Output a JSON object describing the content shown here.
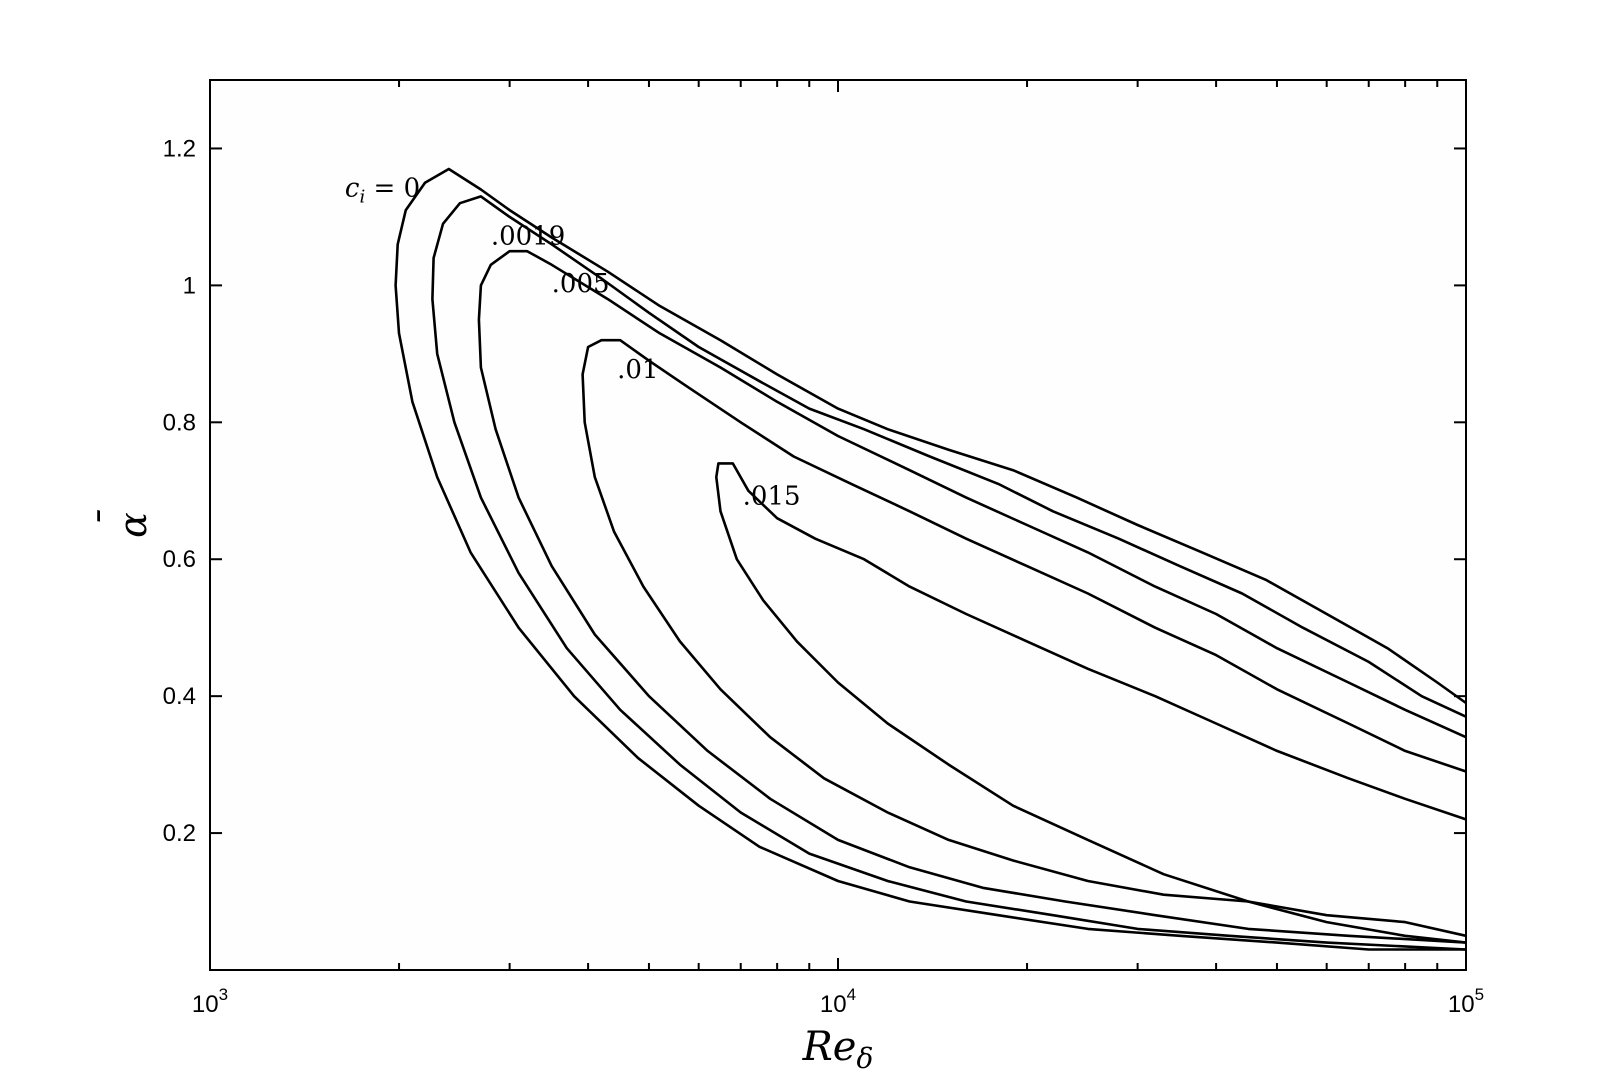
{
  "chart_data": {
    "type": "line",
    "title": "",
    "xlabel": "Re",
    "xlabel_sub": "δ",
    "ylabel": "α",
    "ylabel_bar": "ˉ",
    "xscale": "log",
    "xlim": [
      1000,
      100000
    ],
    "ylim": [
      0,
      1.3
    ],
    "x_ticks": [
      {
        "base": "10",
        "exp": "3",
        "value": 1000
      },
      {
        "base": "10",
        "exp": "4",
        "value": 10000
      },
      {
        "base": "10",
        "exp": "5",
        "value": 100000
      }
    ],
    "y_ticks": [
      {
        "label": "0.2",
        "value": 0.2
      },
      {
        "label": "0.4",
        "value": 0.4
      },
      {
        "label": "0.6",
        "value": 0.6
      },
      {
        "label": "0.8",
        "value": 0.8
      },
      {
        "label": "1",
        "value": 1.0
      },
      {
        "label": "1.2",
        "value": 1.2
      }
    ],
    "grid": false,
    "legend": "none",
    "line_color": "#000000",
    "series": [
      {
        "level": "0",
        "label_prefix": "c",
        "label_sub": "i",
        "label_suffix": " = 0",
        "label_at": [
          1640,
          1.13
        ],
        "x": [
          100000,
          90000,
          75000,
          60000,
          48000,
          38000,
          30000,
          24000,
          19000,
          15000,
          12000,
          10000,
          8000,
          6500,
          5200,
          4300,
          3500,
          3000,
          2700,
          2400,
          2200,
          2050,
          1990,
          1975,
          2000,
          2100,
          2300,
          2600,
          3100,
          3800,
          4800,
          6000,
          7500,
          10000,
          13000,
          18000,
          25000,
          35000,
          50000,
          70000,
          100000
        ],
        "y": [
          0.39,
          0.42,
          0.47,
          0.52,
          0.57,
          0.61,
          0.65,
          0.69,
          0.73,
          0.76,
          0.79,
          0.82,
          0.87,
          0.92,
          0.97,
          1.02,
          1.07,
          1.11,
          1.14,
          1.17,
          1.15,
          1.11,
          1.06,
          1.0,
          0.93,
          0.83,
          0.72,
          0.61,
          0.5,
          0.4,
          0.31,
          0.24,
          0.18,
          0.13,
          0.1,
          0.08,
          0.06,
          0.05,
          0.04,
          0.03,
          0.03
        ]
      },
      {
        "level": ".0019",
        "label": ".0019",
        "label_at": [
          2800,
          1.06
        ],
        "x": [
          100000,
          85000,
          70000,
          55000,
          44000,
          35000,
          28000,
          22000,
          18000,
          14000,
          11000,
          9000,
          7500,
          6000,
          5000,
          4200,
          3500,
          3000,
          2700,
          2500,
          2350,
          2270,
          2260,
          2300,
          2450,
          2700,
          3100,
          3700,
          4500,
          5600,
          7000,
          9000,
          12000,
          16000,
          22000,
          30000,
          42000,
          60000,
          100000
        ],
        "y": [
          0.37,
          0.4,
          0.45,
          0.5,
          0.55,
          0.59,
          0.63,
          0.67,
          0.71,
          0.75,
          0.79,
          0.82,
          0.86,
          0.91,
          0.96,
          1.01,
          1.06,
          1.1,
          1.13,
          1.12,
          1.09,
          1.04,
          0.98,
          0.9,
          0.8,
          0.69,
          0.58,
          0.47,
          0.38,
          0.3,
          0.23,
          0.17,
          0.13,
          0.1,
          0.08,
          0.06,
          0.05,
          0.04,
          0.03
        ]
      },
      {
        "level": ".005",
        "label": ".005",
        "label_at": [
          3500,
          0.99
        ],
        "x": [
          100000,
          80000,
          65000,
          50000,
          40000,
          32000,
          25000,
          20000,
          16000,
          13000,
          10000,
          8000,
          6500,
          5200,
          4300,
          3500,
          3200,
          3000,
          2800,
          2700,
          2680,
          2700,
          2850,
          3100,
          3500,
          4100,
          5000,
          6200,
          7800,
          10000,
          13000,
          17000,
          23000,
          32000,
          45000,
          65000,
          100000
        ],
        "y": [
          0.34,
          0.38,
          0.42,
          0.47,
          0.52,
          0.56,
          0.61,
          0.65,
          0.69,
          0.73,
          0.78,
          0.83,
          0.88,
          0.93,
          0.98,
          1.03,
          1.05,
          1.05,
          1.03,
          1.0,
          0.95,
          0.88,
          0.79,
          0.69,
          0.59,
          0.49,
          0.4,
          0.32,
          0.25,
          0.19,
          0.15,
          0.12,
          0.1,
          0.08,
          0.06,
          0.05,
          0.04
        ]
      },
      {
        "level": ".01",
        "label": ".01",
        "label_at": [
          4450,
          0.865
        ],
        "x": [
          100000,
          80000,
          65000,
          50000,
          40000,
          32000,
          25000,
          20000,
          16000,
          13000,
          10500,
          8500,
          7000,
          5800,
          5000,
          4500,
          4200,
          4000,
          3920,
          3950,
          4100,
          4400,
          4900,
          5600,
          6500,
          7800,
          9500,
          12000,
          15000,
          19000,
          25000,
          33000,
          45000,
          60000,
          80000,
          100000
        ],
        "y": [
          0.29,
          0.32,
          0.36,
          0.41,
          0.46,
          0.5,
          0.55,
          0.59,
          0.63,
          0.67,
          0.71,
          0.75,
          0.8,
          0.85,
          0.89,
          0.92,
          0.92,
          0.91,
          0.87,
          0.8,
          0.72,
          0.64,
          0.56,
          0.48,
          0.41,
          0.34,
          0.28,
          0.23,
          0.19,
          0.16,
          0.13,
          0.11,
          0.1,
          0.08,
          0.07,
          0.05
        ]
      },
      {
        "level": ".015",
        "label": ".015",
        "label_at": [
          7050,
          0.68
        ],
        "x": [
          100000,
          80000,
          65000,
          50000,
          40000,
          32000,
          25000,
          20000,
          16000,
          13000,
          11000,
          9200,
          8000,
          7200,
          6800,
          6450,
          6400,
          6500,
          6900,
          7600,
          8600,
          10000,
          12000,
          15000,
          19000,
          25000,
          33000,
          45000,
          60000,
          80000,
          100000
        ],
        "y": [
          0.22,
          0.25,
          0.28,
          0.32,
          0.36,
          0.4,
          0.44,
          0.48,
          0.52,
          0.56,
          0.6,
          0.63,
          0.66,
          0.7,
          0.74,
          0.74,
          0.72,
          0.67,
          0.6,
          0.54,
          0.48,
          0.42,
          0.36,
          0.3,
          0.24,
          0.19,
          0.14,
          0.1,
          0.07,
          0.05,
          0.04
        ]
      }
    ]
  }
}
